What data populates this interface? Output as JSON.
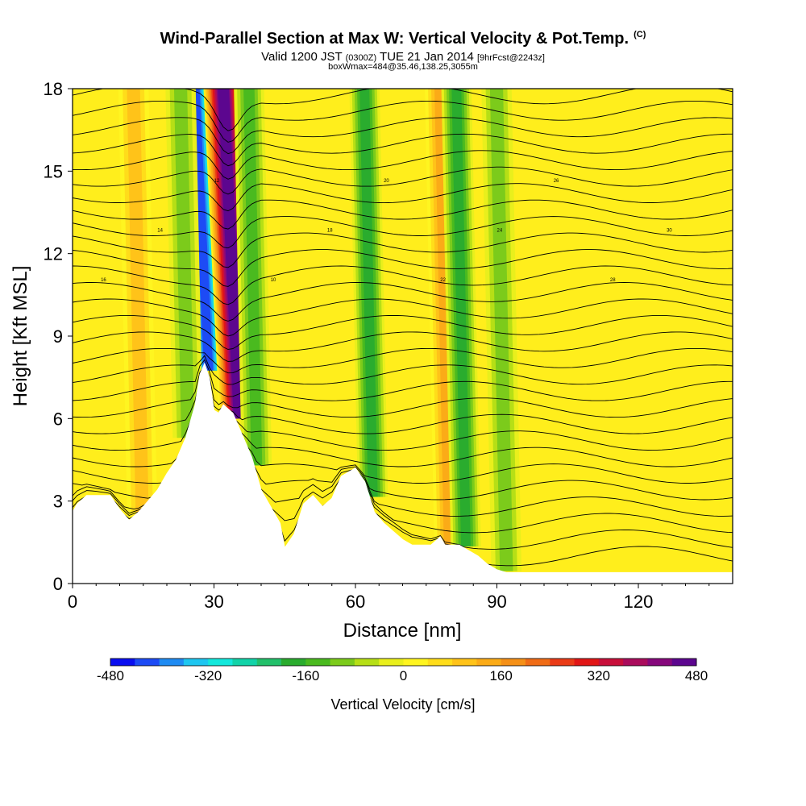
{
  "header": {
    "title": "Wind-Parallel Section at Max W: Vertical Velocity & Pot.Temp.",
    "title_mark": "(C)",
    "valid_prefix": "Valid 1200 JST",
    "valid_utc": "(0300Z)",
    "valid_date": "TUE 21 Jan 2014",
    "forecast": "[9hrFcst@2243z]",
    "box_info": "boxWmax=484@35.46,138.25,3055m"
  },
  "chart_data": {
    "type": "heatmap",
    "xlabel": "Distance [nm]",
    "ylabel": "Height [Kft MSL]",
    "xlim": [
      0,
      140
    ],
    "ylim": [
      0,
      18
    ],
    "x_ticks": [
      "0",
      "30",
      "60",
      "90",
      "120"
    ],
    "y_ticks": [
      "0",
      "3",
      "6",
      "9",
      "12",
      "15",
      "18"
    ],
    "colorbar": {
      "label": "Vertical Velocity [cm/s]",
      "min": -480,
      "max": 480,
      "tick_labels": [
        "-480",
        "-320",
        "-160",
        "0",
        "160",
        "320",
        "480"
      ],
      "colors": [
        "#0a0ef0",
        "#1d4bf5",
        "#1f8bf2",
        "#1ec6f0",
        "#14e8dc",
        "#12d3a8",
        "#22c06a",
        "#2aac2e",
        "#4aba1f",
        "#7ccb1b",
        "#b6df16",
        "#e9ef1c",
        "#fff520",
        "#ffdd1a",
        "#ffc319",
        "#fbab17",
        "#f59017",
        "#f06c16",
        "#ea3b17",
        "#e11616",
        "#c80f3a",
        "#aa0c5c",
        "#86087c",
        "#5c068f"
      ]
    },
    "plumes": [
      {
        "x": 28.5,
        "peak_w": -420,
        "description": "downdraft core"
      },
      {
        "x": 34.5,
        "peak_w": 484,
        "description": "updraft core"
      },
      {
        "x": 38.5,
        "peak_w": -150
      },
      {
        "x": 63.0,
        "peak_w": -180
      },
      {
        "x": 79.0,
        "peak_w": 130
      },
      {
        "x": 82.5,
        "peak_w": -190
      },
      {
        "x": 91.0,
        "peak_w": -120
      },
      {
        "x": 14.0,
        "peak_w": 90
      },
      {
        "x": 24.0,
        "peak_w": -100
      }
    ],
    "terrain": [
      [
        0,
        2.6
      ],
      [
        1,
        2.9
      ],
      [
        3,
        3.2
      ],
      [
        8,
        3.2
      ],
      [
        10,
        2.7
      ],
      [
        12,
        2.3
      ],
      [
        14,
        2.6
      ],
      [
        16,
        3.0
      ],
      [
        18,
        3.4
      ],
      [
        20,
        4.0
      ],
      [
        22,
        4.5
      ],
      [
        24,
        5.3
      ],
      [
        26,
        6.5
      ],
      [
        27,
        7.6
      ],
      [
        28,
        8.0
      ],
      [
        29,
        7.5
      ],
      [
        30,
        6.3
      ],
      [
        31,
        6.2
      ],
      [
        32,
        6.5
      ],
      [
        34,
        6.2
      ],
      [
        36,
        5.4
      ],
      [
        38,
        4.6
      ],
      [
        40,
        3.4
      ],
      [
        42,
        2.8
      ],
      [
        44,
        2.2
      ],
      [
        45,
        1.3
      ],
      [
        47,
        1.8
      ],
      [
        49,
        2.9
      ],
      [
        51,
        3.2
      ],
      [
        53,
        2.8
      ],
      [
        55,
        3.1
      ],
      [
        57,
        3.9
      ],
      [
        60,
        4.2
      ],
      [
        62,
        3.7
      ],
      [
        64,
        2.6
      ],
      [
        66,
        2.2
      ],
      [
        68,
        1.9
      ],
      [
        70,
        1.6
      ],
      [
        72,
        1.4
      ],
      [
        76,
        1.4
      ],
      [
        78,
        1.7
      ],
      [
        79,
        1.4
      ],
      [
        82,
        1.4
      ],
      [
        84,
        1.2
      ],
      [
        86,
        1.0
      ],
      [
        88,
        0.7
      ],
      [
        90,
        0.5
      ],
      [
        92,
        0.4
      ],
      [
        140,
        0.4
      ]
    ],
    "theta_contour_labels": [
      "16",
      "14",
      "12",
      "10",
      "18",
      "20",
      "22",
      "24",
      "26",
      "28",
      "30"
    ]
  }
}
